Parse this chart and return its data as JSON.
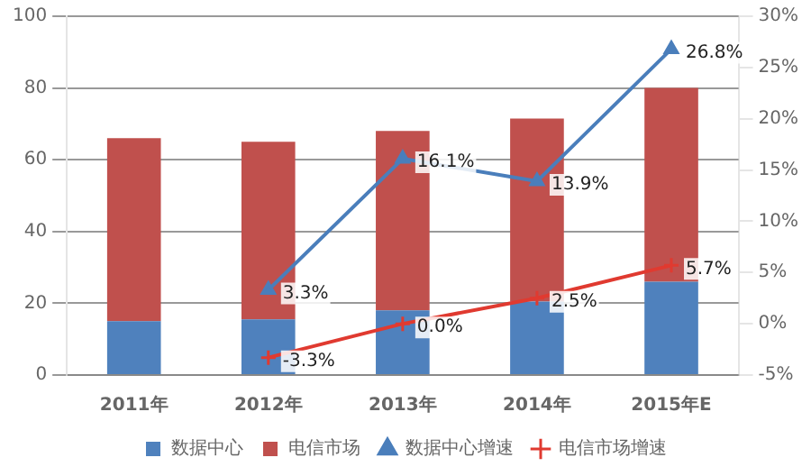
{
  "chart_data": {
    "type": "bar",
    "stacked": true,
    "categories": [
      "2011年",
      "2012年",
      "2013年",
      "2014年",
      "2015年E"
    ],
    "series": [
      {
        "name": "数据中心",
        "color": "#4f81bd",
        "values": [
          15,
          15.5,
          18,
          20.5,
          26
        ]
      },
      {
        "name": "电信市场",
        "color": "#c0504d",
        "values": [
          51,
          49.5,
          50,
          51,
          54
        ]
      },
      {
        "name": "数据中心增速",
        "type": "line",
        "axis": "y2",
        "marker": "triangle",
        "color": "#4a7ebb",
        "values": [
          null,
          3.3,
          16.1,
          13.9,
          26.8
        ],
        "value_labels": [
          null,
          "3.3%",
          "16.1%",
          "13.9%",
          "26.8%"
        ]
      },
      {
        "name": "电信市场增速",
        "type": "line",
        "axis": "y2",
        "marker": "cross",
        "color": "#e03a30",
        "values": [
          null,
          -3.3,
          0.0,
          2.5,
          5.7
        ],
        "value_labels": [
          null,
          "-3.3%",
          "0.0%",
          "2.5%",
          "5.7%"
        ]
      }
    ],
    "ylim": [
      0,
      100
    ],
    "yticks": [
      0,
      20,
      40,
      60,
      80,
      100
    ],
    "y2lim": [
      -5,
      30
    ],
    "y2ticks": [
      {
        "value": -5,
        "label": "-5%"
      },
      {
        "value": 0,
        "label": "0%"
      },
      {
        "value": 5,
        "label": "5%"
      },
      {
        "value": 10,
        "label": "10%"
      },
      {
        "value": 15,
        "label": "15%"
      },
      {
        "value": 20,
        "label": "20%"
      },
      {
        "value": 25,
        "label": "25%"
      },
      {
        "value": 30,
        "label": "30%"
      }
    ],
    "grid": "y",
    "legend": "bottom"
  }
}
